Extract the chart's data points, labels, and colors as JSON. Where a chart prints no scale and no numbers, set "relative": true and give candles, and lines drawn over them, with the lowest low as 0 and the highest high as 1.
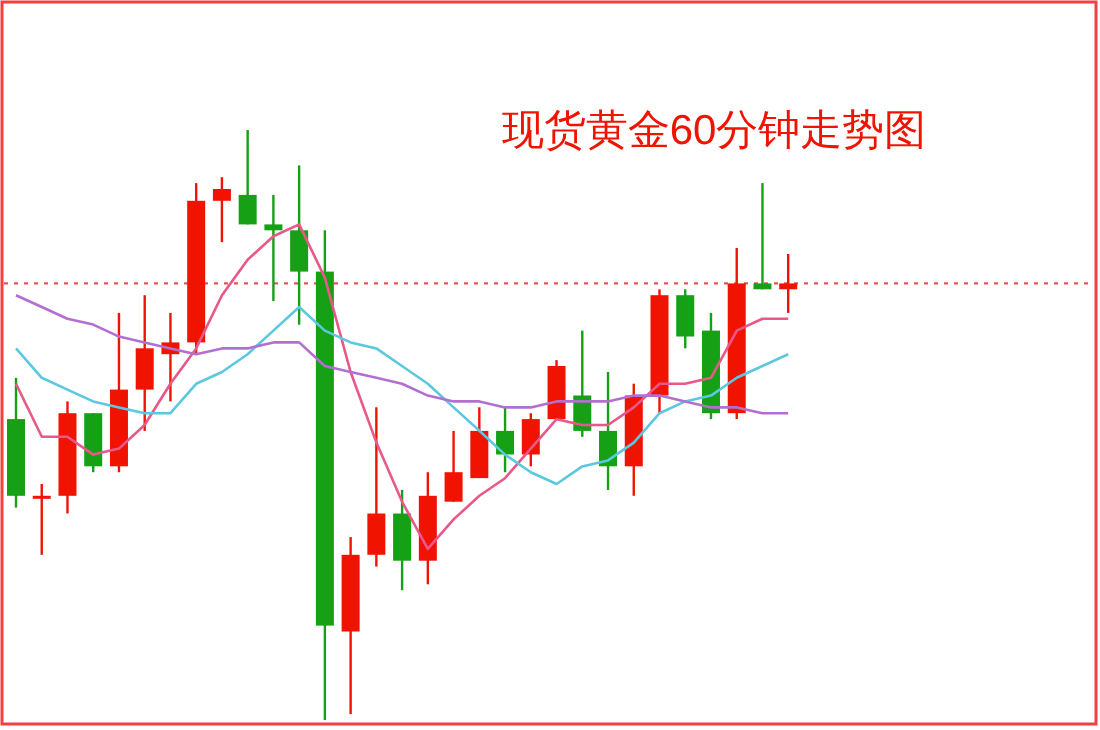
{
  "chart_data": {
    "type": "candlestick",
    "title": "现货黄金60分钟走势图",
    "relative": true,
    "categories": [
      null,
      null,
      null,
      null,
      null,
      null,
      null,
      null,
      null,
      null,
      null,
      null,
      null,
      null,
      null,
      null,
      null,
      null,
      null,
      null,
      null,
      null,
      null,
      null,
      null,
      null,
      null,
      null,
      null,
      null,
      null
    ],
    "ohlc": [
      [
        0.51,
        0.58,
        0.36,
        0.38
      ],
      [
        0.38,
        0.4,
        0.28,
        0.38
      ],
      [
        0.38,
        0.54,
        0.35,
        0.52
      ],
      [
        0.52,
        0.52,
        0.42,
        0.43
      ],
      [
        0.43,
        0.69,
        0.42,
        0.56
      ],
      [
        0.56,
        0.72,
        0.49,
        0.63
      ],
      [
        0.62,
        0.69,
        0.54,
        0.64
      ],
      [
        0.64,
        0.91,
        0.62,
        0.88
      ],
      [
        0.88,
        0.92,
        0.81,
        0.9
      ],
      [
        0.89,
        1.0,
        0.84,
        0.84
      ],
      [
        0.84,
        0.89,
        0.71,
        0.83
      ],
      [
        0.83,
        0.94,
        0.67,
        0.76
      ],
      [
        0.76,
        0.83,
        0,
        0.16
      ],
      [
        0.15,
        0.31,
        0.01,
        0.28
      ],
      [
        0.28,
        0.53,
        0.26,
        0.35
      ],
      [
        0.35,
        0.39,
        0.22,
        0.27
      ],
      [
        0.27,
        0.42,
        0.23,
        0.38
      ],
      [
        0.37,
        0.49,
        0.37,
        0.42
      ],
      [
        0.41,
        0.53,
        0.41,
        0.49
      ],
      [
        0.49,
        0.53,
        0.42,
        0.45
      ],
      [
        0.45,
        0.52,
        0.43,
        0.51
      ],
      [
        0.51,
        0.61,
        0.51,
        0.6
      ],
      [
        0.55,
        0.66,
        0.48,
        0.49
      ],
      [
        0.49,
        0.59,
        0.39,
        0.43
      ],
      [
        0.43,
        0.57,
        0.38,
        0.55
      ],
      [
        0.55,
        0.73,
        0.52,
        0.72
      ],
      [
        0.72,
        0.73,
        0.63,
        0.65
      ],
      [
        0.66,
        0.69,
        0.51,
        0.52
      ],
      [
        0.52,
        0.8,
        0.51,
        0.74
      ],
      [
        0.74,
        0.91,
        0.73,
        0.73
      ],
      [
        0.73,
        0.79,
        0.69,
        0.74
      ]
    ],
    "colors": [
      "#16a016",
      "#f01400",
      "#f01400",
      "#16a016",
      "#f01400",
      "#f01400",
      "#f01400",
      "#f01400",
      "#f01400",
      "#16a016",
      "#16a016",
      "#16a016",
      "#16a016",
      "#f01400",
      "#f01400",
      "#16a016",
      "#f01400",
      "#f01400",
      "#f01400",
      "#16a016",
      "#f01400",
      "#f01400",
      "#16a016",
      "#16a016",
      "#f01400",
      "#f01400",
      "#16a016",
      "#16a016",
      "#f01400",
      "#16a016",
      "#f01400"
    ],
    "series": [
      {
        "type": "line",
        "color": "#e8588a",
        "values": [
          0.57,
          0.48,
          0.48,
          0.45,
          0.46,
          0.5,
          0.57,
          0.63,
          0.72,
          0.78,
          0.82,
          0.84,
          0.75,
          0.59,
          0.47,
          0.37,
          0.29,
          0.34,
          0.38,
          0.41,
          0.46,
          0.51,
          0.5,
          0.5,
          0.53,
          0.57,
          0.57,
          0.58,
          0.66,
          0.68,
          0.68
        ]
      },
      {
        "type": "line",
        "color": "#5bc8e0",
        "values": [
          0.63,
          0.58,
          0.56,
          0.54,
          0.53,
          0.52,
          0.52,
          0.57,
          0.59,
          0.62,
          0.66,
          0.7,
          0.66,
          0.64,
          0.63,
          0.6,
          0.57,
          0.53,
          0.49,
          0.45,
          0.42,
          0.4,
          0.43,
          0.44,
          0.47,
          0.52,
          0.54,
          0.55,
          0.58,
          0.6,
          0.62
        ]
      },
      {
        "type": "line",
        "color": "#b36fd0",
        "values": [
          0.72,
          0.7,
          0.68,
          0.67,
          0.65,
          0.64,
          0.63,
          0.62,
          0.63,
          0.63,
          0.64,
          0.64,
          0.6,
          0.59,
          0.58,
          0.57,
          0.55,
          0.54,
          0.54,
          0.53,
          0.53,
          0.54,
          0.54,
          0.54,
          0.55,
          0.55,
          0.54,
          0.53,
          0.53,
          0.52,
          0.52
        ]
      }
    ],
    "ref_lines": [
      {
        "axis": "y",
        "value": 0.74,
        "color": "#f05050",
        "line_style": "dotted"
      }
    ]
  }
}
